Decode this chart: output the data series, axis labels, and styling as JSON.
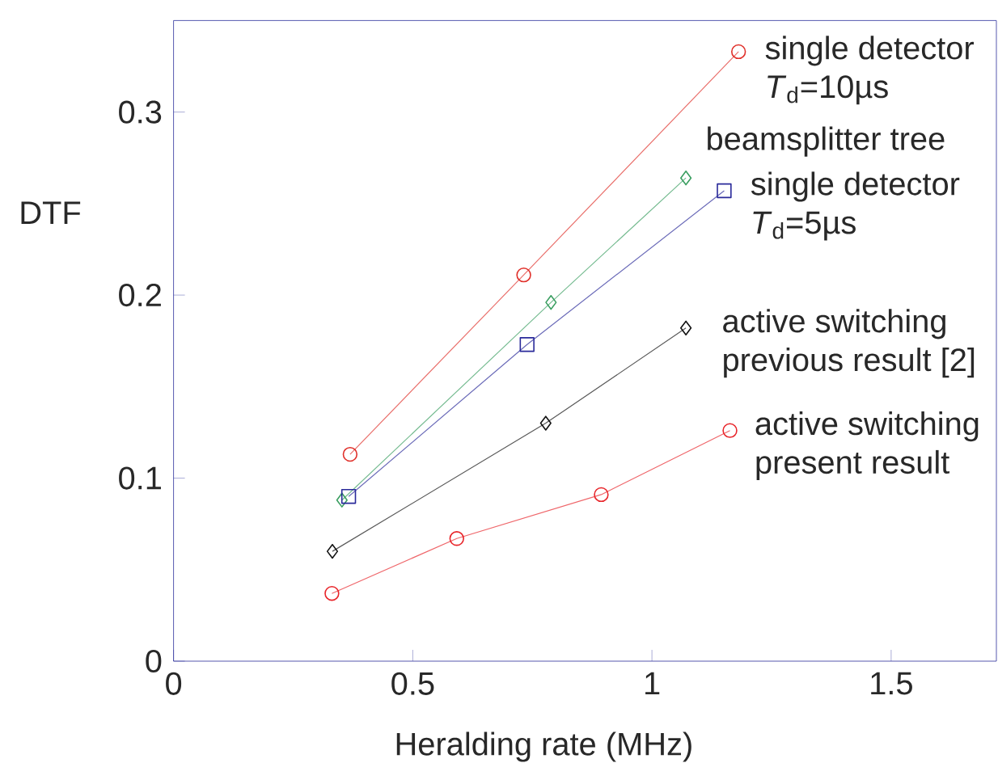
{
  "chart_data": {
    "type": "line",
    "xlabel": "Heralding rate (MHz)",
    "ylabel": "DTF",
    "xlim": [
      0,
      1.72
    ],
    "xticks": [
      0,
      0.5,
      1,
      1.5
    ],
    "ylim": [
      0,
      0.35
    ],
    "yticks": [
      0,
      0.1,
      0.2,
      0.3
    ],
    "grid": false,
    "series": [
      {
        "name": "single detector *T*$_{d}$=10µs",
        "color": "#e0302a",
        "marker": "circle",
        "x": [
          0.369,
          0.732,
          1.181
        ],
        "values": [
          0.113,
          0.211,
          0.333
        ]
      },
      {
        "name": "beamsplitter tree",
        "color": "#3a9e60",
        "marker": "diamond",
        "x": [
          0.352,
          0.789,
          1.071
        ],
        "values": [
          0.088,
          0.196,
          0.264
        ]
      },
      {
        "name": "single detector *T*$_{d}$=5µs",
        "color": "#2a2a9a",
        "marker": "square",
        "x": [
          0.366,
          0.739,
          1.151
        ],
        "values": [
          0.09,
          0.173,
          0.257
        ]
      },
      {
        "name": "active switching previous result [2]",
        "color": "#111111",
        "marker": "diamond",
        "x": [
          0.332,
          0.778,
          1.071
        ],
        "values": [
          0.06,
          0.13,
          0.182
        ]
      },
      {
        "name": "active switching present result",
        "color": "#e8252a",
        "marker": "circle",
        "x": [
          0.331,
          0.592,
          0.894,
          1.163
        ],
        "values": [
          0.037,
          0.067,
          0.091,
          0.126
        ]
      }
    ]
  }
}
